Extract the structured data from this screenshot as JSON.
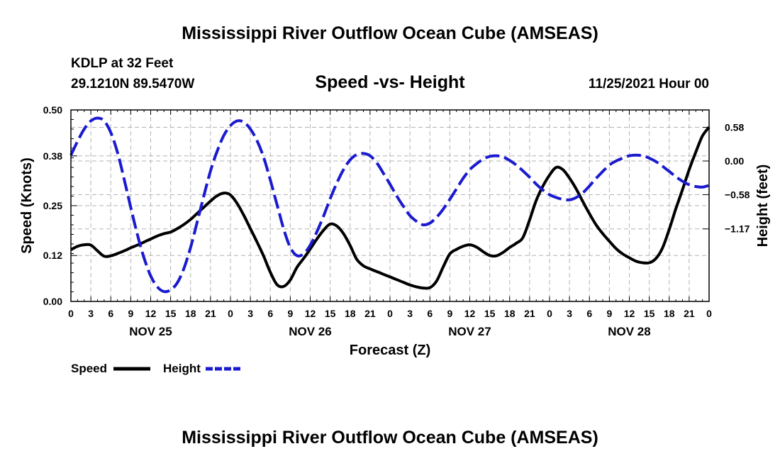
{
  "page": {
    "title": "Mississippi River Outflow Ocean Cube (AMSEAS)",
    "station": "KDLP at 32 Feet",
    "coords": "29.1210N  89.5470W",
    "datetime": "11/25/2021 Hour 00",
    "bottom_title": "Mississippi River Outflow Ocean Cube (AMSEAS)"
  },
  "chart_data": {
    "type": "line",
    "title": "Speed -vs- Height",
    "xlabel": "Forecast (Z)",
    "ylabel_left": "Speed (Knots)",
    "ylabel_right": "Height (feet)",
    "x_hours": [
      0,
      3,
      6,
      9,
      12,
      15,
      18,
      21,
      24,
      27,
      30,
      33,
      36,
      39,
      42,
      45,
      48,
      51,
      54,
      57,
      60,
      63,
      66,
      69,
      72,
      75,
      78,
      81,
      84,
      87,
      90,
      93,
      96
    ],
    "xtick_labels": [
      "0",
      "3",
      "6",
      "9",
      "12",
      "15",
      "18",
      "21",
      "0",
      "3",
      "6",
      "9",
      "12",
      "15",
      "18",
      "21",
      "0",
      "3",
      "6",
      "9",
      "12",
      "15",
      "18",
      "21",
      "0",
      "3",
      "6",
      "9",
      "12",
      "15",
      "18",
      "21",
      "0"
    ],
    "day_labels": [
      {
        "hour": 12,
        "label": "NOV 25"
      },
      {
        "hour": 36,
        "label": "NOV 26"
      },
      {
        "hour": 60,
        "label": "NOV 27"
      },
      {
        "hour": 84,
        "label": "NOV 28"
      }
    ],
    "left_axis": {
      "min": 0.0,
      "max": 0.5,
      "ticks": [
        0.0,
        0.12,
        0.25,
        0.38,
        0.5
      ],
      "tick_labels": [
        "0.00",
        "0.12",
        "0.25",
        "0.38",
        "0.50"
      ]
    },
    "right_axis": {
      "min": -2.42,
      "max": 0.88,
      "ticks": [
        0.58,
        0.0,
        -0.58,
        -1.17
      ],
      "tick_labels": [
        "0.58",
        "0.00",
        "−0.58",
        "−1.17"
      ]
    },
    "grid": true,
    "series": [
      {
        "name": "Speed",
        "axis": "left",
        "color": "#000000",
        "dashed": false,
        "x": [
          0,
          1,
          2,
          3,
          4,
          5,
          6,
          7,
          8,
          9,
          10,
          11,
          12,
          13,
          14,
          15,
          16,
          17,
          18,
          19,
          20,
          21,
          22,
          23,
          24,
          25,
          26,
          27,
          28,
          29,
          30,
          31,
          32,
          33,
          34,
          35,
          36,
          37,
          38,
          39,
          40,
          41,
          42,
          43,
          44,
          45,
          46,
          47,
          48,
          49,
          50,
          51,
          52,
          53,
          54,
          55,
          56,
          57,
          58,
          59,
          60,
          61,
          62,
          63,
          64,
          65,
          66,
          67,
          68,
          69,
          70,
          71,
          72,
          73,
          74,
          75,
          76,
          77,
          78,
          79,
          80,
          81,
          82,
          83,
          84,
          85,
          86,
          87,
          88,
          89,
          90,
          91,
          92,
          93,
          94,
          95,
          96
        ],
        "values": [
          0.135,
          0.144,
          0.148,
          0.147,
          0.132,
          0.118,
          0.119,
          0.125,
          0.132,
          0.14,
          0.147,
          0.155,
          0.163,
          0.171,
          0.177,
          0.181,
          0.19,
          0.201,
          0.214,
          0.23,
          0.246,
          0.262,
          0.276,
          0.283,
          0.278,
          0.256,
          0.225,
          0.19,
          0.155,
          0.118,
          0.076,
          0.044,
          0.039,
          0.056,
          0.089,
          0.112,
          0.137,
          0.163,
          0.186,
          0.202,
          0.197,
          0.177,
          0.146,
          0.11,
          0.093,
          0.085,
          0.078,
          0.071,
          0.064,
          0.057,
          0.05,
          0.043,
          0.038,
          0.035,
          0.036,
          0.053,
          0.09,
          0.124,
          0.136,
          0.144,
          0.148,
          0.142,
          0.13,
          0.12,
          0.119,
          0.128,
          0.141,
          0.152,
          0.167,
          0.213,
          0.264,
          0.301,
          0.33,
          0.35,
          0.344,
          0.322,
          0.294,
          0.261,
          0.229,
          0.2,
          0.177,
          0.157,
          0.138,
          0.124,
          0.114,
          0.105,
          0.101,
          0.101,
          0.112,
          0.14,
          0.188,
          0.242,
          0.292,
          0.344,
          0.39,
          0.432,
          0.455
        ]
      },
      {
        "name": "Height",
        "axis": "right",
        "color": "#1a1ad0",
        "dashed": true,
        "x": [
          0,
          1,
          2,
          3,
          4,
          5,
          6,
          7,
          8,
          9,
          10,
          11,
          12,
          13,
          14,
          15,
          16,
          17,
          18,
          19,
          20,
          21,
          22,
          23,
          24,
          25,
          26,
          27,
          28,
          29,
          30,
          31,
          32,
          33,
          34,
          35,
          36,
          37,
          38,
          39,
          40,
          41,
          42,
          43,
          44,
          45,
          46,
          47,
          48,
          49,
          50,
          51,
          52,
          53,
          54,
          55,
          56,
          57,
          58,
          59,
          60,
          61,
          62,
          63,
          64,
          65,
          66,
          67,
          68,
          69,
          70,
          71,
          72,
          73,
          74,
          75,
          76,
          77,
          78,
          79,
          80,
          81,
          82,
          83,
          84,
          85,
          86,
          87,
          88,
          89,
          90,
          91,
          92,
          93,
          94,
          95,
          96
        ],
        "values": [
          0.1,
          0.34,
          0.55,
          0.69,
          0.74,
          0.69,
          0.49,
          0.15,
          -0.31,
          -0.8,
          -1.27,
          -1.67,
          -1.98,
          -2.17,
          -2.25,
          -2.22,
          -2.1,
          -1.85,
          -1.49,
          -1.05,
          -0.6,
          -0.17,
          0.17,
          0.44,
          0.61,
          0.69,
          0.67,
          0.55,
          0.35,
          0.06,
          -0.33,
          -0.75,
          -1.17,
          -1.49,
          -1.63,
          -1.6,
          -1.45,
          -1.22,
          -0.95,
          -0.65,
          -0.38,
          -0.15,
          0.02,
          0.11,
          0.13,
          0.09,
          -0.03,
          -0.21,
          -0.4,
          -0.6,
          -0.78,
          -0.94,
          -1.04,
          -1.1,
          -1.07,
          -0.97,
          -0.83,
          -0.66,
          -0.48,
          -0.3,
          -0.15,
          -0.05,
          0.03,
          0.08,
          0.09,
          0.07,
          0.01,
          -0.07,
          -0.17,
          -0.28,
          -0.4,
          -0.5,
          -0.58,
          -0.63,
          -0.66,
          -0.67,
          -0.63,
          -0.55,
          -0.43,
          -0.3,
          -0.18,
          -0.07,
          0.0,
          0.05,
          0.09,
          0.1,
          0.09,
          0.05,
          -0.01,
          -0.09,
          -0.18,
          -0.27,
          -0.35,
          -0.41,
          -0.44,
          -0.45,
          -0.42
        ]
      }
    ],
    "legend": [
      {
        "label": "Speed",
        "color": "#000000",
        "dashed": false
      },
      {
        "label": "Height",
        "color": "#1a1ad0",
        "dashed": true
      }
    ]
  }
}
